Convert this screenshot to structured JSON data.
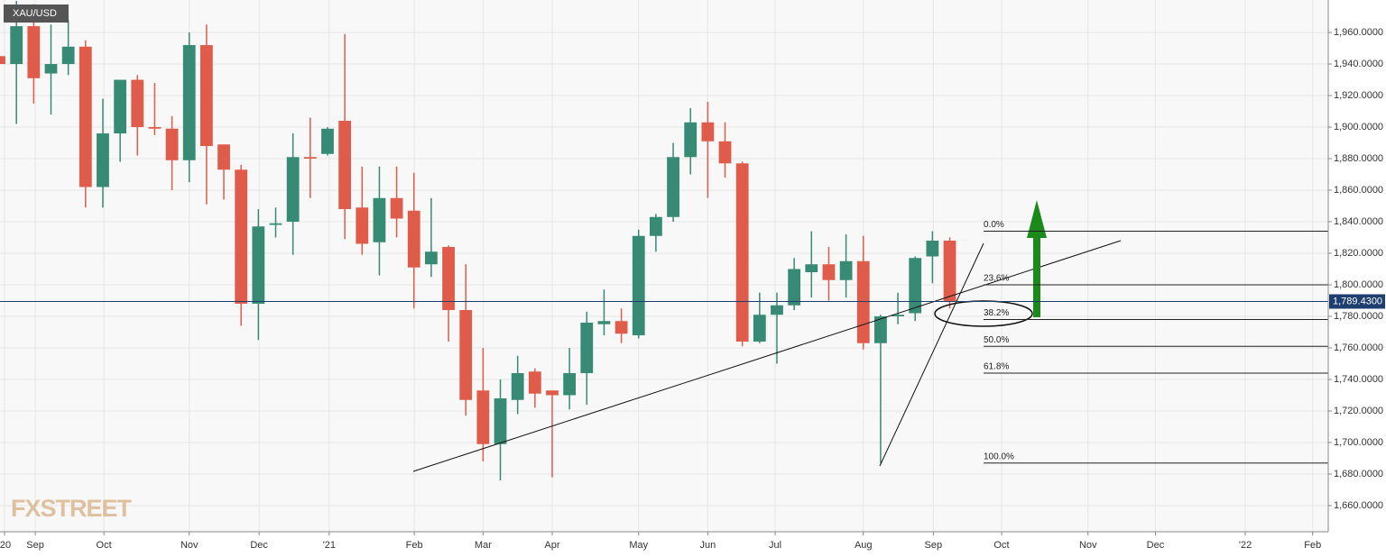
{
  "chart_data": {
    "type": "candlestick",
    "title": "XAU/USD",
    "watermark": "FXSTREET",
    "up_color": "#378a74",
    "down_color": "#e05c4a",
    "open": [
      1945,
      1940,
      1964,
      1934,
      1940,
      1951,
      1862,
      1896,
      1930,
      1900,
      1899,
      1879,
      1952,
      1889,
      1873,
      1788,
      1838,
      1840,
      1881,
      1883,
      1904,
      1849,
      1827,
      1855,
      1847,
      1813,
      1824,
      1784,
      1733,
      1699,
      1727,
      1745,
      1733,
      1730,
      1744,
      1775,
      1777,
      1768,
      1831,
      1843,
      1881,
      1903,
      1891,
      1877,
      1764,
      1781,
      1787,
      1808,
      1813,
      1803,
      1815,
      1763,
      1780,
      1782,
      1818,
      1828
    ],
    "high": [
      1975,
      1980,
      1978,
      1965,
      1968,
      1955,
      1918,
      1930,
      1933,
      1928,
      1907,
      1960,
      1965,
      1889,
      1876,
      1848,
      1849,
      1896,
      1906,
      1900,
      1959,
      1875,
      1875,
      1875,
      1871,
      1855,
      1825,
      1813,
      1760,
      1740,
      1755,
      1747,
      1733,
      1760,
      1783,
      1797,
      1785,
      1835,
      1845,
      1890,
      1912,
      1916,
      1903,
      1878,
      1795,
      1795,
      1817,
      1834,
      1824,
      1832,
      1831,
      1781,
      1795,
      1818,
      1834,
      1830
    ],
    "low": [
      1910,
      1902,
      1915,
      1908,
      1933,
      1849,
      1849,
      1878,
      1882,
      1895,
      1860,
      1865,
      1851,
      1854,
      1774,
      1765,
      1830,
      1819,
      1855,
      1882,
      1829,
      1819,
      1806,
      1830,
      1785,
      1805,
      1764,
      1717,
      1688,
      1676,
      1718,
      1722,
      1678,
      1721,
      1724,
      1768,
      1763,
      1766,
      1821,
      1840,
      1870,
      1855,
      1868,
      1761,
      1763,
      1750,
      1784,
      1792,
      1790,
      1792,
      1759,
      1687,
      1775,
      1777,
      1801,
      1785
    ],
    "close": [
      1940,
      1964,
      1931,
      1940,
      1951,
      1862,
      1896,
      1930,
      1900,
      1899,
      1879,
      1952,
      1888,
      1873,
      1788,
      1837,
      1839,
      1881,
      1880,
      1899,
      1848,
      1826,
      1855,
      1842,
      1811,
      1821,
      1784,
      1727,
      1699,
      1728,
      1744,
      1731,
      1730,
      1744,
      1776,
      1777,
      1769,
      1831,
      1843,
      1881,
      1903,
      1891,
      1877,
      1764,
      1781,
      1787,
      1810,
      1813,
      1803,
      1815,
      1763,
      1780,
      1781,
      1817,
      1828,
      1789.43
    ],
    "last_price": {
      "value": 1789.43,
      "label": "1,789.4300"
    },
    "ylim": [
      1643.4,
      1980.6
    ],
    "yticks": [
      {
        "value": 1660,
        "label": "1,660.0000"
      },
      {
        "value": 1680,
        "label": "1,680.0000"
      },
      {
        "value": 1700,
        "label": "1,700.0000"
      },
      {
        "value": 1720,
        "label": "1,720.0000"
      },
      {
        "value": 1740,
        "label": "1,740.0000"
      },
      {
        "value": 1760,
        "label": "1,760.0000"
      },
      {
        "value": 1780,
        "label": "1,780.0000"
      },
      {
        "value": 1800,
        "label": "1,800.0000"
      },
      {
        "value": 1820,
        "label": "1,820.0000"
      },
      {
        "value": 1840,
        "label": "1,840.0000"
      },
      {
        "value": 1860,
        "label": "1,860.0000"
      },
      {
        "value": 1880,
        "label": "1,880.0000"
      },
      {
        "value": 1900,
        "label": "1,900.0000"
      },
      {
        "value": 1920,
        "label": "1,920.0000"
      },
      {
        "value": 1940,
        "label": "1,940.0000"
      },
      {
        "value": 1960,
        "label": "1,960.0000"
      }
    ],
    "xlim": [
      0.05,
      76.9
    ],
    "xticks": [
      {
        "value": 0.31,
        "label": "'20"
      },
      {
        "value": 2.09,
        "label": "Sep"
      },
      {
        "value": 6.06,
        "label": "Oct"
      },
      {
        "value": 11.0,
        "label": "Nov"
      },
      {
        "value": 15.04,
        "label": "Dec"
      },
      {
        "value": 19.1,
        "label": "'21"
      },
      {
        "value": 24.02,
        "label": "Feb"
      },
      {
        "value": 28.0,
        "label": "Mar"
      },
      {
        "value": 32.0,
        "label": "Apr"
      },
      {
        "value": 37.0,
        "label": "May"
      },
      {
        "value": 41.0,
        "label": "Jun"
      },
      {
        "value": 44.9,
        "label": "Jul"
      },
      {
        "value": 50.0,
        "label": "Aug"
      },
      {
        "value": 54.05,
        "label": "Sep"
      },
      {
        "value": 58.0,
        "label": "Oct"
      },
      {
        "value": 63.0,
        "label": "Nov"
      },
      {
        "value": 66.9,
        "label": "Dec"
      },
      {
        "value": 72.1,
        "label": "'22"
      },
      {
        "value": 76.0,
        "label": "Feb"
      }
    ],
    "grid": true,
    "fibonacci": [
      {
        "level": "0.0%",
        "price": 1834
      },
      {
        "level": "23.6%",
        "price": 1800
      },
      {
        "level": "38.2%",
        "price": 1778
      },
      {
        "level": "50.0%",
        "price": 1761
      },
      {
        "level": "61.8%",
        "price": 1744
      },
      {
        "level": "100.0%",
        "price": 1687
      }
    ]
  }
}
